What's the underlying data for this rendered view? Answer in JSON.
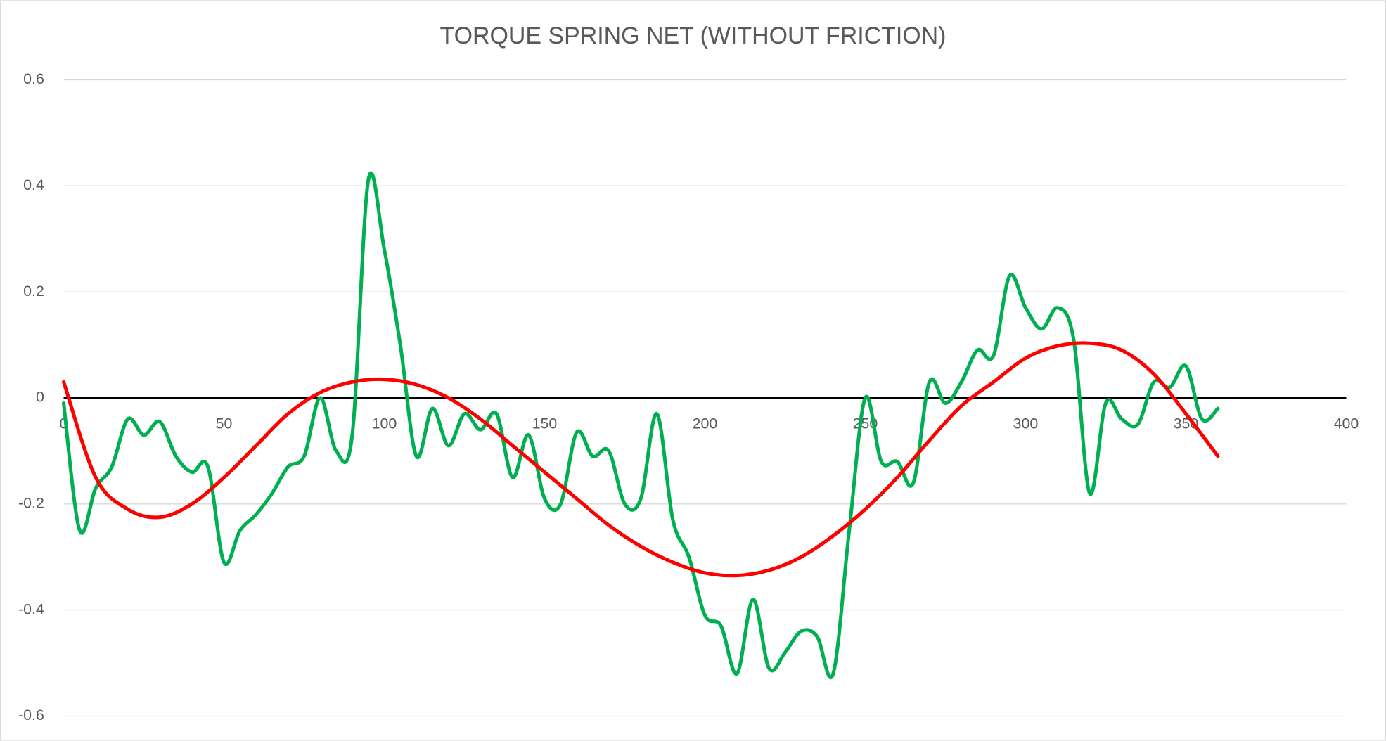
{
  "chart_data": {
    "type": "line",
    "title": "TORQUE SPRING NET (WITHOUT FRICTION)",
    "xlim": [
      0,
      400
    ],
    "xticks": [
      0,
      50,
      100,
      150,
      200,
      250,
      300,
      350,
      400
    ],
    "ylim": [
      -0.6,
      0.6
    ],
    "yticks": [
      -0.6,
      -0.4,
      -0.2,
      0,
      0.2,
      0.4,
      0.6
    ],
    "grid": true,
    "series": [
      {
        "color": "#00b050",
        "x": [
          0,
          5,
          10,
          15,
          20,
          25,
          30,
          35,
          40,
          45,
          50,
          55,
          60,
          65,
          70,
          75,
          80,
          85,
          90,
          95,
          100,
          105,
          110,
          115,
          120,
          125,
          130,
          135,
          140,
          145,
          150,
          155,
          160,
          165,
          170,
          175,
          180,
          185,
          190,
          195,
          200,
          205,
          210,
          215,
          220,
          225,
          230,
          235,
          240,
          245,
          250,
          255,
          260,
          265,
          270,
          275,
          280,
          285,
          290,
          295,
          300,
          305,
          310,
          315,
          320,
          325,
          330,
          335,
          340,
          345,
          350,
          355,
          360
        ],
        "values": [
          -0.01,
          -0.25,
          -0.17,
          -0.13,
          -0.04,
          -0.07,
          -0.045,
          -0.11,
          -0.14,
          -0.13,
          -0.31,
          -0.25,
          -0.22,
          -0.18,
          -0.13,
          -0.11,
          0.0,
          -0.1,
          -0.07,
          0.41,
          0.28,
          0.1,
          -0.11,
          -0.02,
          -0.09,
          -0.03,
          -0.06,
          -0.03,
          -0.15,
          -0.07,
          -0.19,
          -0.2,
          -0.065,
          -0.11,
          -0.1,
          -0.2,
          -0.19,
          -0.03,
          -0.23,
          -0.3,
          -0.41,
          -0.43,
          -0.52,
          -0.38,
          -0.51,
          -0.48,
          -0.44,
          -0.45,
          -0.52,
          -0.25,
          0.0,
          -0.12,
          -0.12,
          -0.16,
          0.03,
          -0.01,
          0.03,
          0.09,
          0.08,
          0.23,
          0.17,
          0.13,
          0.17,
          0.11,
          -0.18,
          -0.01,
          -0.04,
          -0.05,
          0.03,
          0.02,
          0.06,
          -0.04,
          -0.02
        ]
      },
      {
        "color": "#ff0000",
        "x": [
          0,
          10,
          20,
          30,
          40,
          50,
          60,
          70,
          80,
          90,
          100,
          110,
          120,
          130,
          140,
          150,
          160,
          170,
          180,
          190,
          200,
          210,
          220,
          230,
          240,
          250,
          260,
          270,
          280,
          290,
          300,
          310,
          320,
          330,
          340,
          350,
          360
        ],
        "values": [
          0.03,
          -0.15,
          -0.21,
          -0.225,
          -0.2,
          -0.15,
          -0.09,
          -0.03,
          0.01,
          0.03,
          0.035,
          0.025,
          0.0,
          -0.04,
          -0.09,
          -0.14,
          -0.19,
          -0.24,
          -0.28,
          -0.31,
          -0.33,
          -0.335,
          -0.325,
          -0.3,
          -0.26,
          -0.21,
          -0.15,
          -0.08,
          -0.015,
          0.03,
          0.075,
          0.098,
          0.103,
          0.09,
          0.045,
          -0.03,
          -0.11
        ]
      }
    ]
  }
}
